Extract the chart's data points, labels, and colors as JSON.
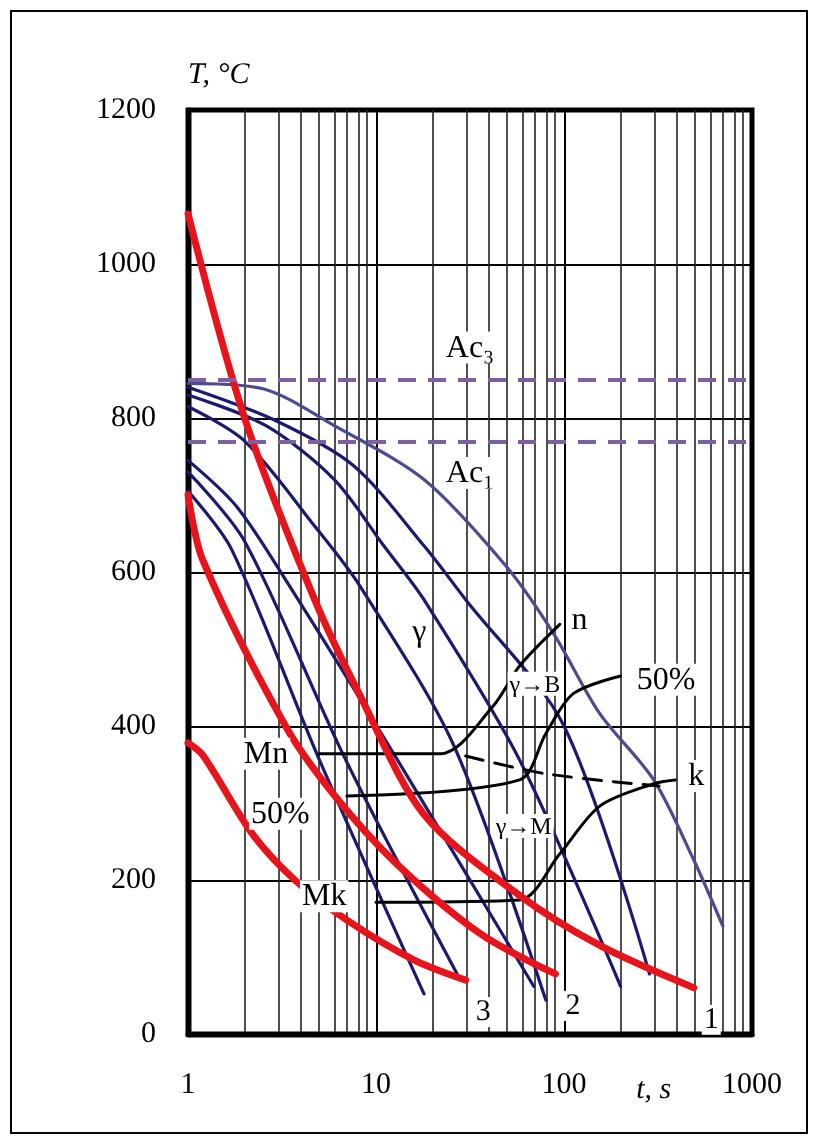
{
  "chart_data": {
    "type": "line",
    "xlabel": "t, s",
    "ylabel": "T, °C",
    "log": "x",
    "xlim": [
      1,
      1000
    ],
    "xticks": [
      1,
      10,
      100,
      1000
    ],
    "ylim": [
      0,
      1200
    ],
    "yticks": [
      0,
      200,
      400,
      600,
      800,
      1000,
      1200
    ],
    "grid": true,
    "legend": false,
    "marker": "none",
    "series": [
      {
        "name": "1",
        "color": "#e8141b",
        "x": [
          1,
          2,
          4.7,
          8.2,
          18,
          58,
          155,
          490
        ],
        "values": [
          1065,
          800,
          565,
          440,
          285,
          180,
          115,
          60
        ]
      },
      {
        "name": "2",
        "color": "#e8141b",
        "x": [
          1,
          1.2,
          3.3,
          6,
          13,
          36,
          90
        ],
        "values": [
          700,
          615,
          400,
          310,
          220,
          130,
          78
        ]
      },
      {
        "name": "3",
        "color": "#e8141b",
        "x": [
          1,
          1.2,
          2.2,
          3.7,
          7,
          16,
          30
        ],
        "values": [
          378,
          362,
          260,
          200,
          148,
          96,
          70
        ]
      },
      {
        "color": "#4b4b8f",
        "x": [
          1,
          2.5,
          6,
          18,
          49,
          88,
          155,
          300,
          490,
          700
        ],
        "values": [
          845,
          838,
          790,
          720,
          608,
          520,
          416,
          330,
          226,
          140
        ]
      },
      {
        "color": "#1a1a6e",
        "x": [
          1,
          2.9,
          7.6,
          18,
          30,
          100,
          285
        ],
        "values": [
          840,
          797,
          738,
          634,
          564,
          400,
          78
        ]
      },
      {
        "color": "#1a1a6e",
        "x": [
          1,
          2.6,
          6,
          11,
          18,
          58,
          200
        ],
        "values": [
          830,
          790,
          720,
          634,
          564,
          356,
          62
        ]
      },
      {
        "color": "#1a1a6e",
        "x": [
          1,
          2,
          4.7,
          8.2,
          26,
          80
        ],
        "values": [
          815,
          770,
          660,
          582,
          374,
          44
        ]
      },
      {
        "color": "#1a1a6e",
        "x": [
          1,
          1.8,
          3.3,
          13,
          69
        ],
        "values": [
          745,
          686,
          590,
          356,
          62
        ]
      },
      {
        "color": "#1a1a6e",
        "x": [
          1,
          2,
          6.9,
          27
        ],
        "values": [
          730,
          640,
          356,
          78
        ]
      },
      {
        "color": "#1a1a6e",
        "x": [
          1,
          1.7,
          5,
          18
        ],
        "values": [
          705,
          630,
          356,
          52
        ]
      },
      {
        "color": "#000000",
        "x": [
          5,
          22,
          42,
          58,
          95
        ],
        "values": [
          364,
          364,
          426,
          478,
          532
        ]
      },
      {
        "color": "#000000",
        "x": [
          7,
          58,
          80,
          112,
          200
        ],
        "values": [
          309,
          330,
          390,
          442,
          465
        ]
      },
      {
        "color": "#000000",
        "line_style": "dashed",
        "x": [
          30,
          80,
          320
        ],
        "values": [
          361,
          338,
          322
        ]
      },
      {
        "color": "#000000",
        "x": [
          10,
          58,
          95,
          155,
          300,
          390
        ],
        "values": [
          171,
          174,
          234,
          296,
          325,
          330
        ]
      }
    ],
    "ref_lines": [
      {
        "axis": "y",
        "value": 850,
        "label": "Ac₃",
        "color": "#7f5f9f",
        "line_style": "dashed"
      },
      {
        "axis": "y",
        "value": 770,
        "label": "Ac₁",
        "color": "#7f5f9f",
        "line_style": "dashed"
      }
    ],
    "annotations": [
      {
        "text": "Mn",
        "x": 2.6,
        "y": 364
      },
      {
        "text": "50%",
        "x": 3.1,
        "y": 286
      },
      {
        "text": "Mk",
        "x": 5.3,
        "y": 179
      },
      {
        "text": "n",
        "x": 121,
        "y": 538
      },
      {
        "text": "50%",
        "x": 349,
        "y": 460
      },
      {
        "text": "k",
        "x": 505,
        "y": 335
      },
      {
        "text": "γ",
        "x": 17,
        "y": 522
      },
      {
        "text": "γ→B",
        "x": 70,
        "y": 455
      },
      {
        "text": "γ→M",
        "x": 61,
        "y": 270
      }
    ]
  }
}
